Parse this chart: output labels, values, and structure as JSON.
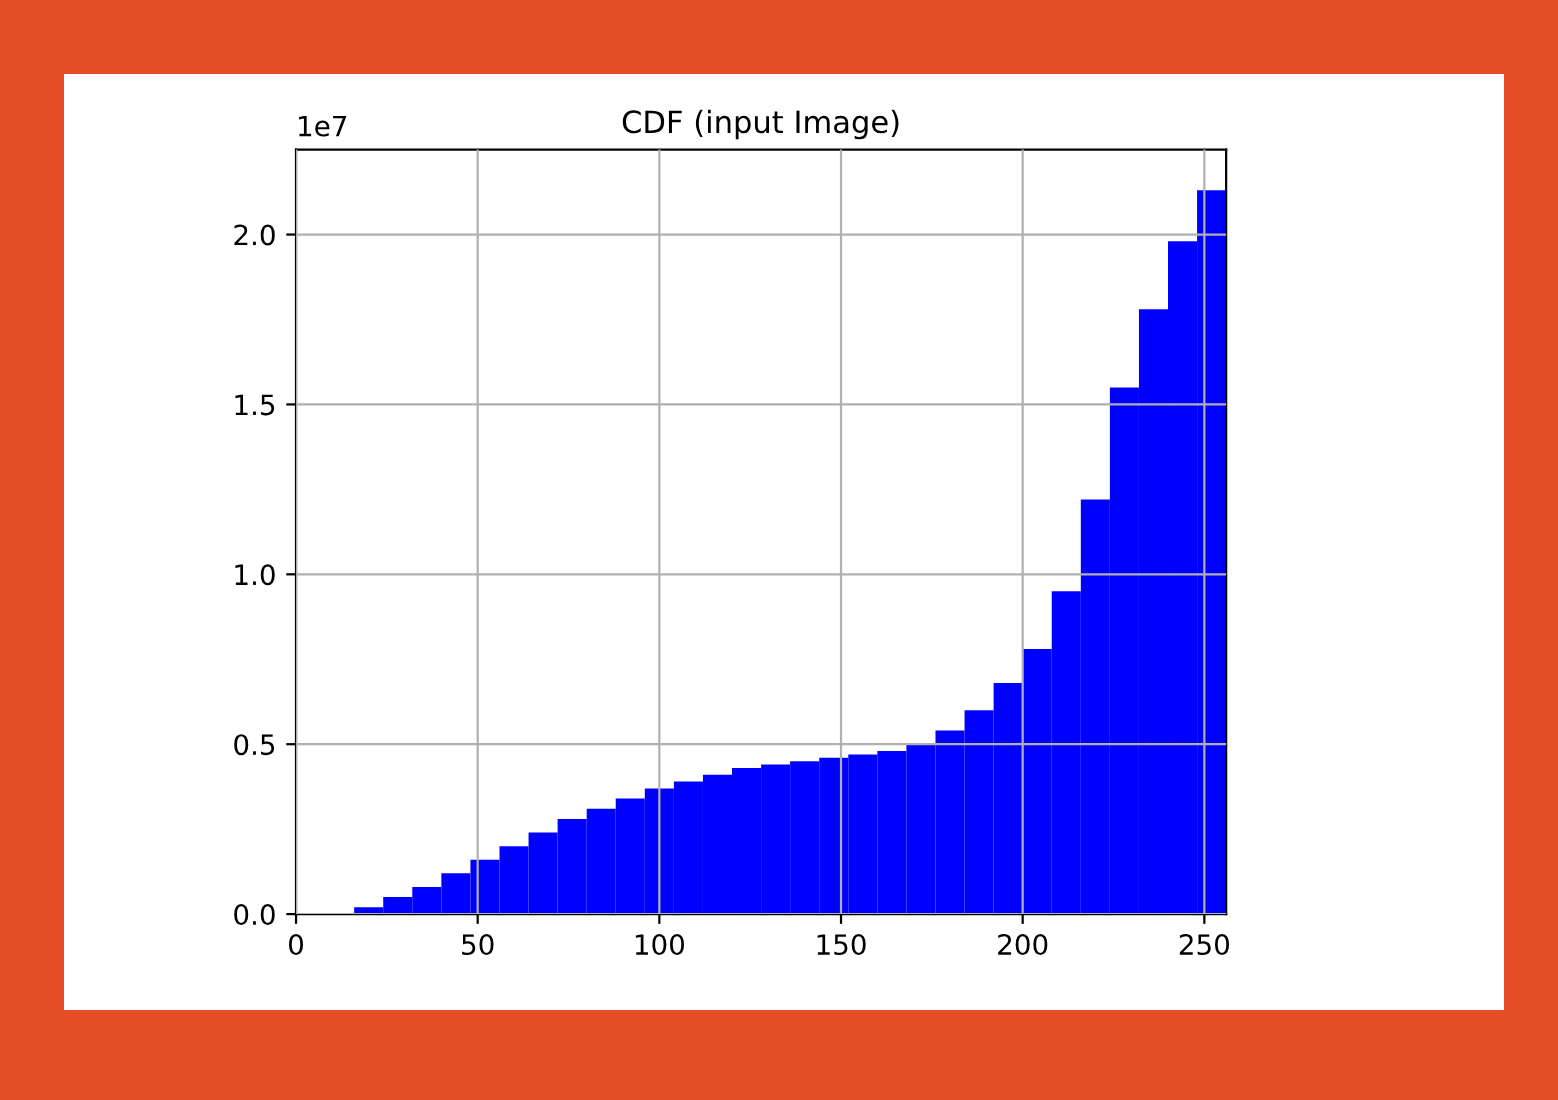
{
  "chart_data": {
    "type": "histogram",
    "title": "CDF (input Image)",
    "bins": [
      0,
      8,
      16,
      24,
      32,
      40,
      48,
      56,
      64,
      72,
      80,
      88,
      96,
      104,
      112,
      120,
      128,
      136,
      144,
      152,
      160,
      168,
      176,
      184,
      192,
      200,
      208,
      216,
      224,
      232,
      240,
      248,
      256
    ],
    "values": [
      0,
      0,
      0.02,
      0.05,
      0.08,
      0.12,
      0.16,
      0.2,
      0.24,
      0.28,
      0.31,
      0.34,
      0.37,
      0.39,
      0.41,
      0.43,
      0.44,
      0.45,
      0.46,
      0.47,
      0.48,
      0.5,
      0.54,
      0.6,
      0.68,
      0.78,
      0.95,
      1.22,
      1.55,
      1.78,
      1.98,
      2.13
    ],
    "color": "#0000ff",
    "annotations": [
      "1e7"
    ],
    "xlim": [
      0,
      256
    ],
    "xticks": [
      0,
      50,
      100,
      150,
      200,
      250
    ],
    "ylim": [
      0,
      2.25
    ],
    "yticks": [
      {
        "value": 0,
        "label": "0.0"
      },
      {
        "value": 0.5,
        "label": "0.5"
      },
      {
        "value": 1.0,
        "label": "1.0"
      },
      {
        "value": 1.5,
        "label": "1.5"
      },
      {
        "value": 2.0,
        "label": "2.0"
      }
    ],
    "grid": true
  }
}
